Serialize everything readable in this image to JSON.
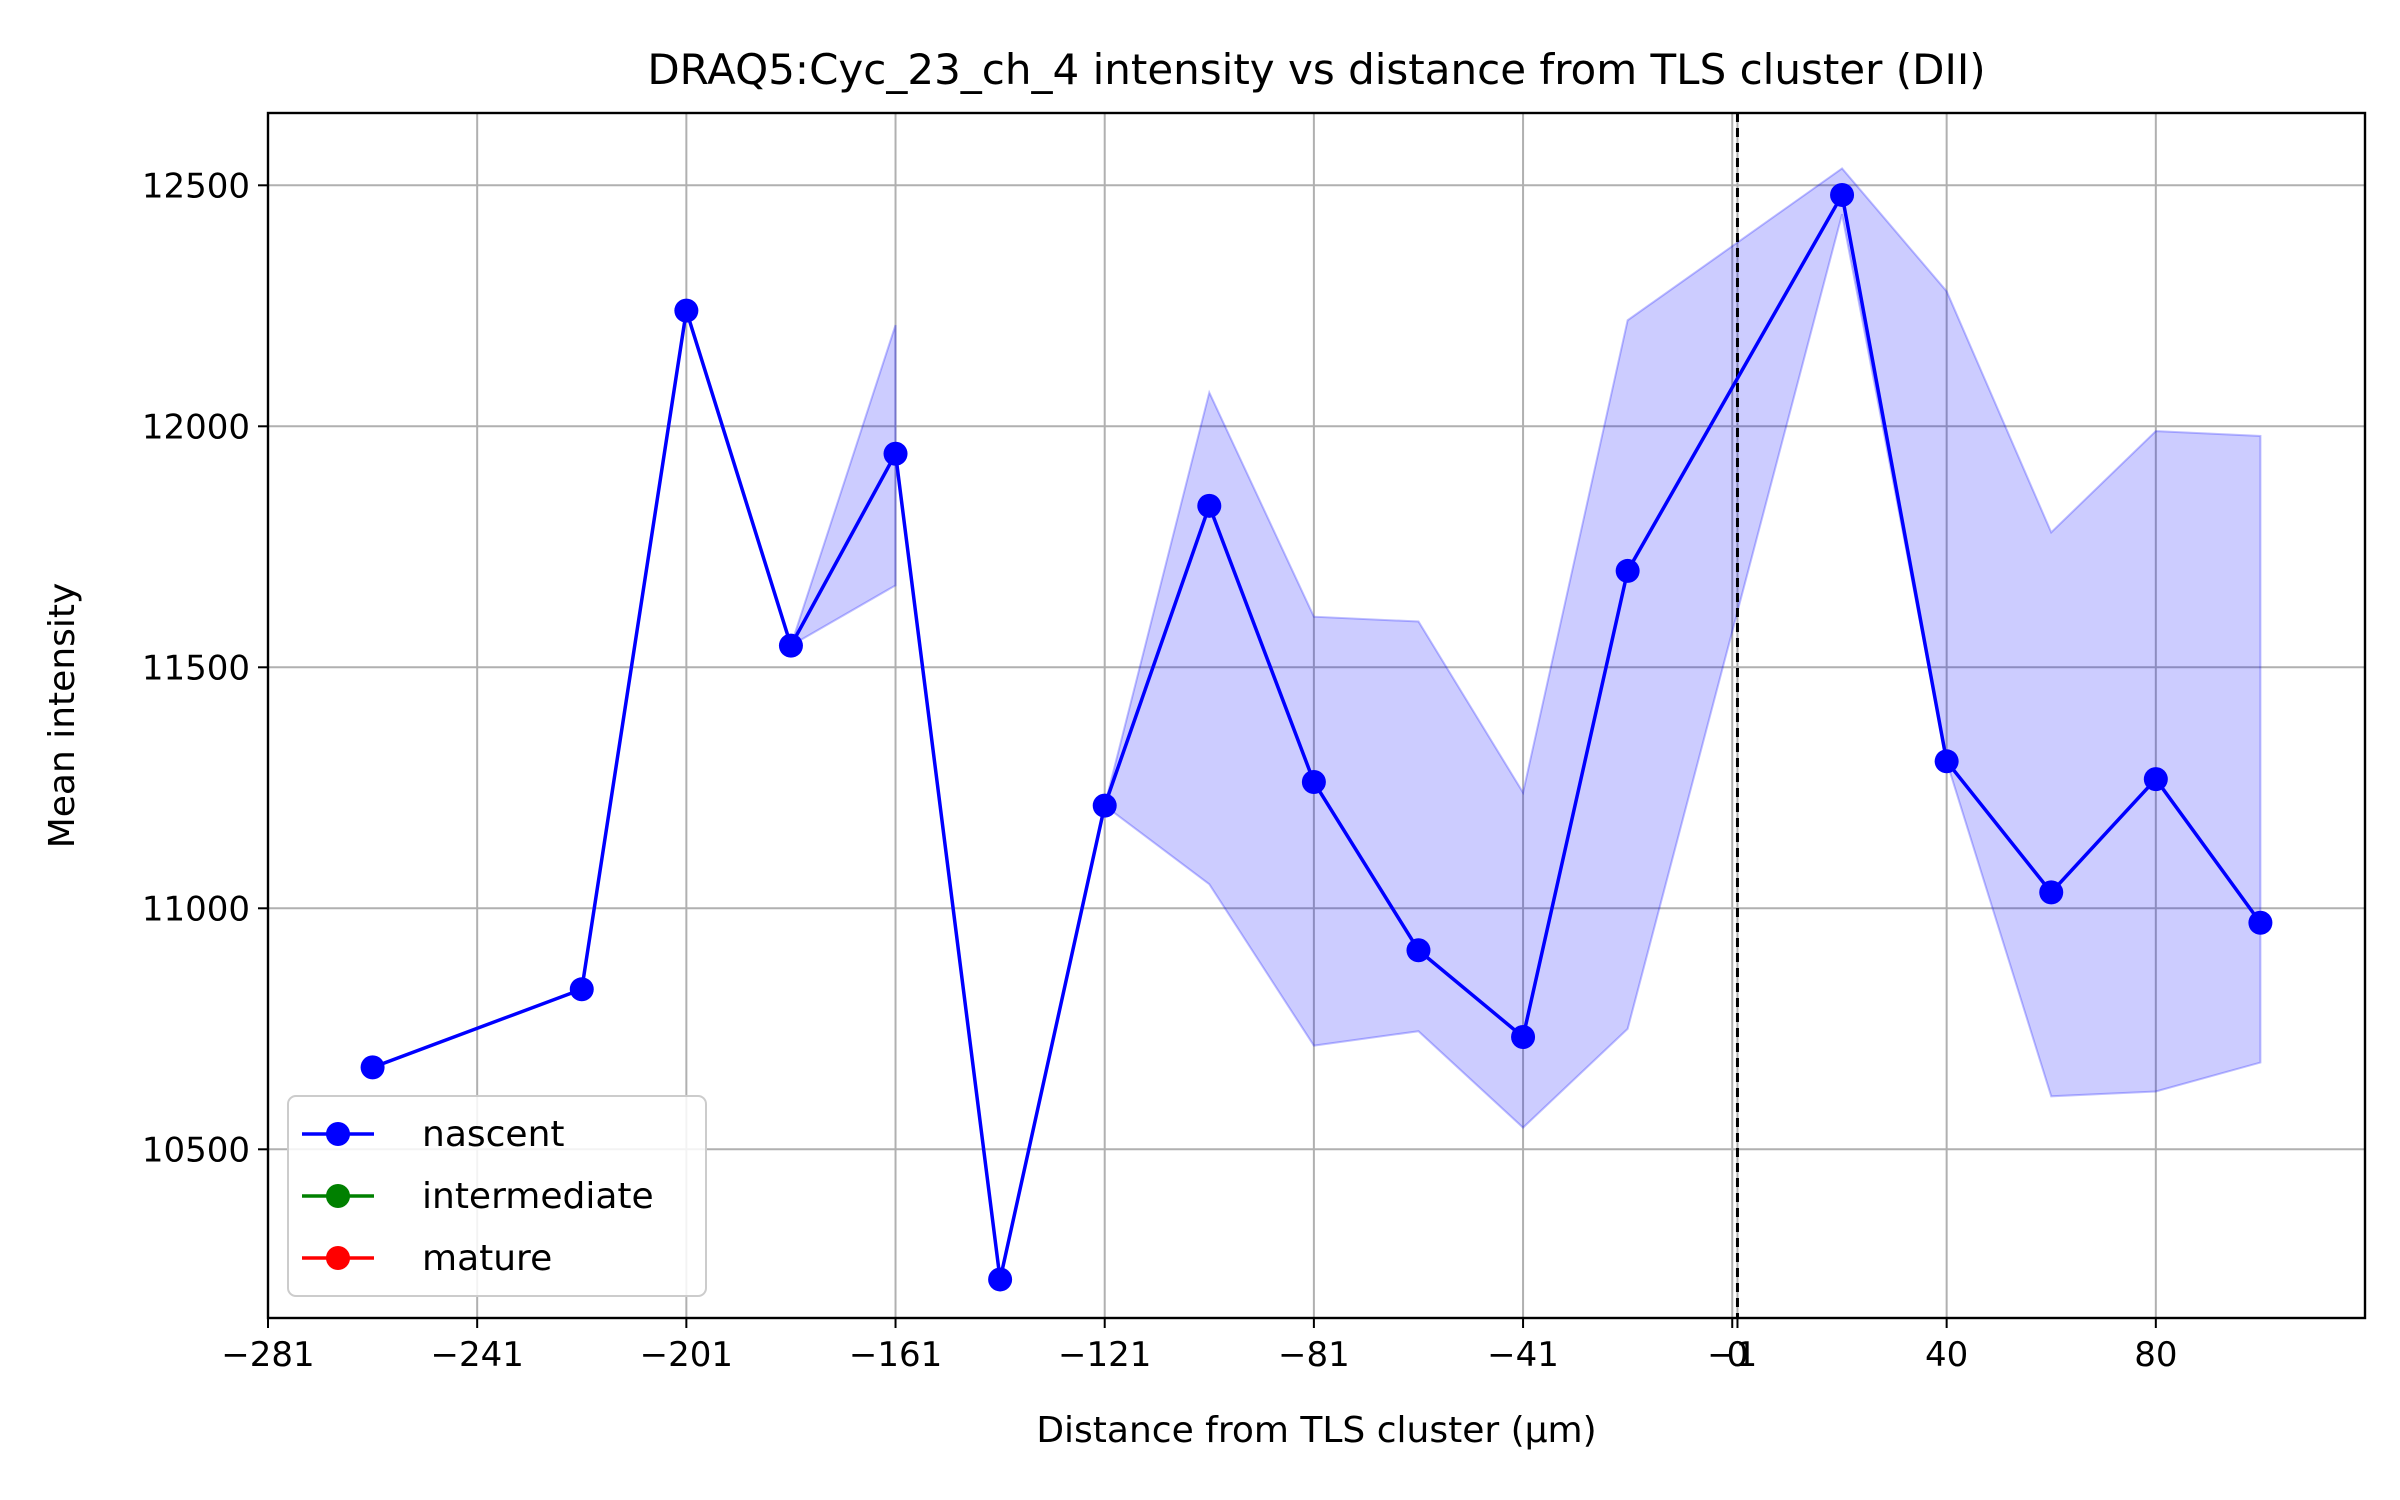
{
  "chart_data": {
    "type": "line",
    "title": "DRAQ5:Cyc_23_ch_4 intensity vs distance from TLS cluster (DII)",
    "xlabel": "Distance from TLS cluster (μm)",
    "ylabel": "Mean intensity",
    "xlim": [
      -281,
      120
    ],
    "ylim": [
      10150,
      12650
    ],
    "x_ticks": [
      "-281",
      "-241",
      "-201",
      "-161",
      "-121",
      "-81",
      "-41",
      "-1",
      "0",
      "40",
      "80"
    ],
    "x_tick_values": [
      -281,
      -241,
      -201,
      -161,
      -121,
      -81,
      -41,
      -1,
      0,
      40,
      80
    ],
    "y_ticks": [
      "10500",
      "11000",
      "11500",
      "12000",
      "12500"
    ],
    "y_tick_values": [
      10500,
      11000,
      11500,
      12000,
      12500
    ],
    "grid": true,
    "vline": 0,
    "legend_position": "lower-left",
    "series": [
      {
        "name": "nascent",
        "color": "#0000ff",
        "x": [
          -261,
          -221,
          -201,
          -181,
          -161,
          -141,
          -121,
          -101,
          -81,
          -61,
          -41,
          -21,
          20,
          40,
          60,
          80,
          100
        ],
        "y": [
          10670,
          10832,
          12240,
          11545,
          11943,
          10230,
          11213,
          11835,
          11262,
          10913,
          10733,
          11700,
          12480,
          11305,
          11033,
          11268,
          10970
        ],
        "band_lower": [
          null,
          null,
          null,
          11545,
          11670,
          null,
          11213,
          11050,
          10715,
          10745,
          10545,
          10750,
          12440,
          11305,
          10610,
          10620,
          10680
        ],
        "band_upper": [
          null,
          null,
          null,
          11545,
          12210,
          null,
          11213,
          12070,
          11605,
          11595,
          11240,
          12220,
          12535,
          12280,
          11780,
          11990,
          11980
        ]
      },
      {
        "name": "intermediate",
        "color": "#008000",
        "x": [],
        "y": []
      },
      {
        "name": "mature",
        "color": "#ff0000",
        "x": [],
        "y": []
      }
    ]
  }
}
